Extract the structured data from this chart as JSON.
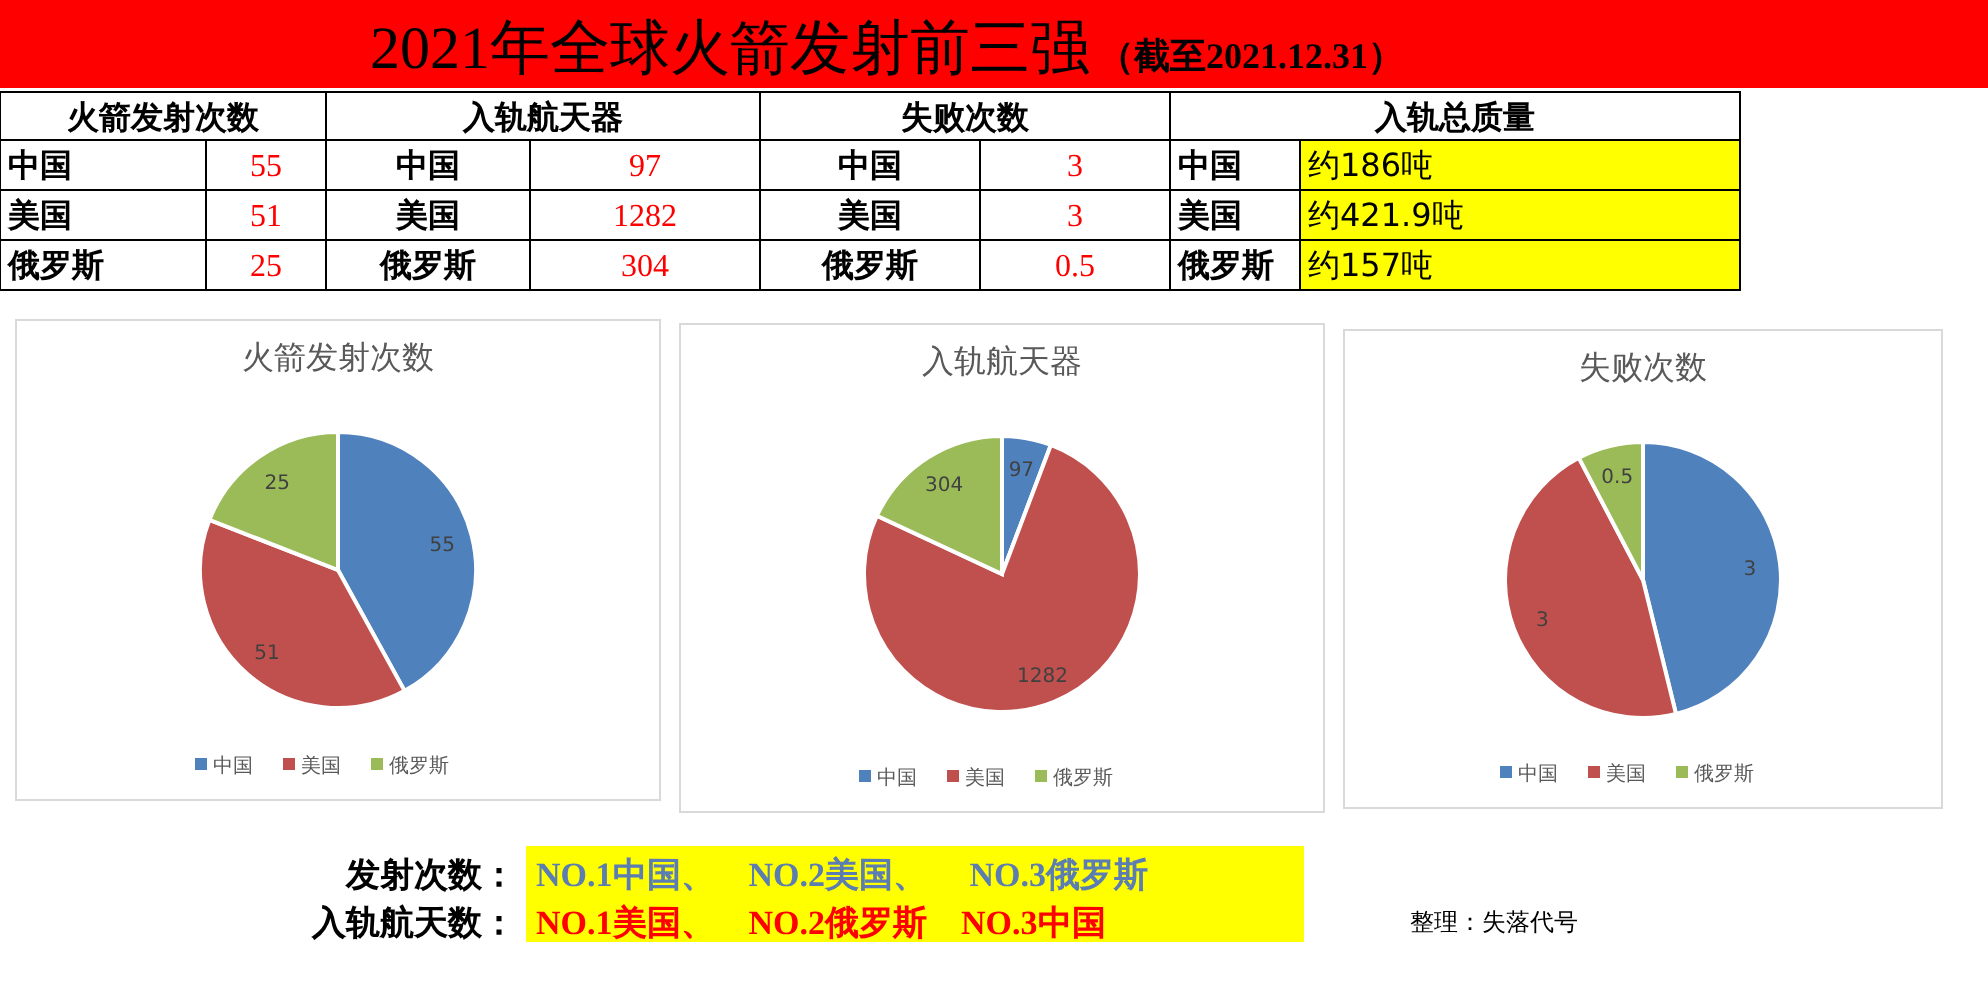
{
  "chart_data": [
    {
      "type": "other",
      "title": "2021年全球火箭发射前三强",
      "subtitle": "（截至2021.12.31）",
      "annotations": [
        "火箭发射次数",
        "入轨航天器",
        "失败次数",
        "入轨总质量",
        "中国",
        "55",
        "中国",
        "97",
        "中国",
        "3",
        "中国",
        "约186吨",
        "美国",
        "51",
        "美国",
        "1282",
        "美国",
        "3",
        "美国",
        "约421.9吨",
        "俄罗斯",
        "25",
        "俄罗斯",
        "304",
        "俄罗斯",
        "0.5",
        "俄罗斯",
        "约157吨",
        "发射次数：",
        "NO.1中国、　NO.2美国、　 NO.3俄罗斯",
        "入轨航天数：",
        "NO.1美国、　NO.2俄罗斯　NO.3中国",
        "整理：失落代号"
      ]
    },
    {
      "type": "pie",
      "title": "火箭发射次数",
      "categories": [
        "中国",
        "美国",
        "俄罗斯"
      ],
      "values": [
        55,
        51,
        25
      ],
      "colors": [
        "#4f81bd",
        "#c0504d",
        "#9bbb59"
      ],
      "data_labels": true,
      "legend": "bottom"
    },
    {
      "type": "pie",
      "title": "入轨航天器",
      "categories": [
        "中国",
        "美国",
        "俄罗斯"
      ],
      "values": [
        97,
        1282,
        304
      ],
      "colors": [
        "#4f81bd",
        "#c0504d",
        "#9bbb59"
      ],
      "data_labels": true,
      "legend": "bottom"
    },
    {
      "type": "pie",
      "title": "失败次数",
      "categories": [
        "中国",
        "美国",
        "俄罗斯"
      ],
      "values": [
        3,
        3,
        0.5
      ],
      "colors": [
        "#4f81bd",
        "#c0504d",
        "#9bbb59"
      ],
      "data_labels": true,
      "legend": "bottom"
    }
  ]
}
